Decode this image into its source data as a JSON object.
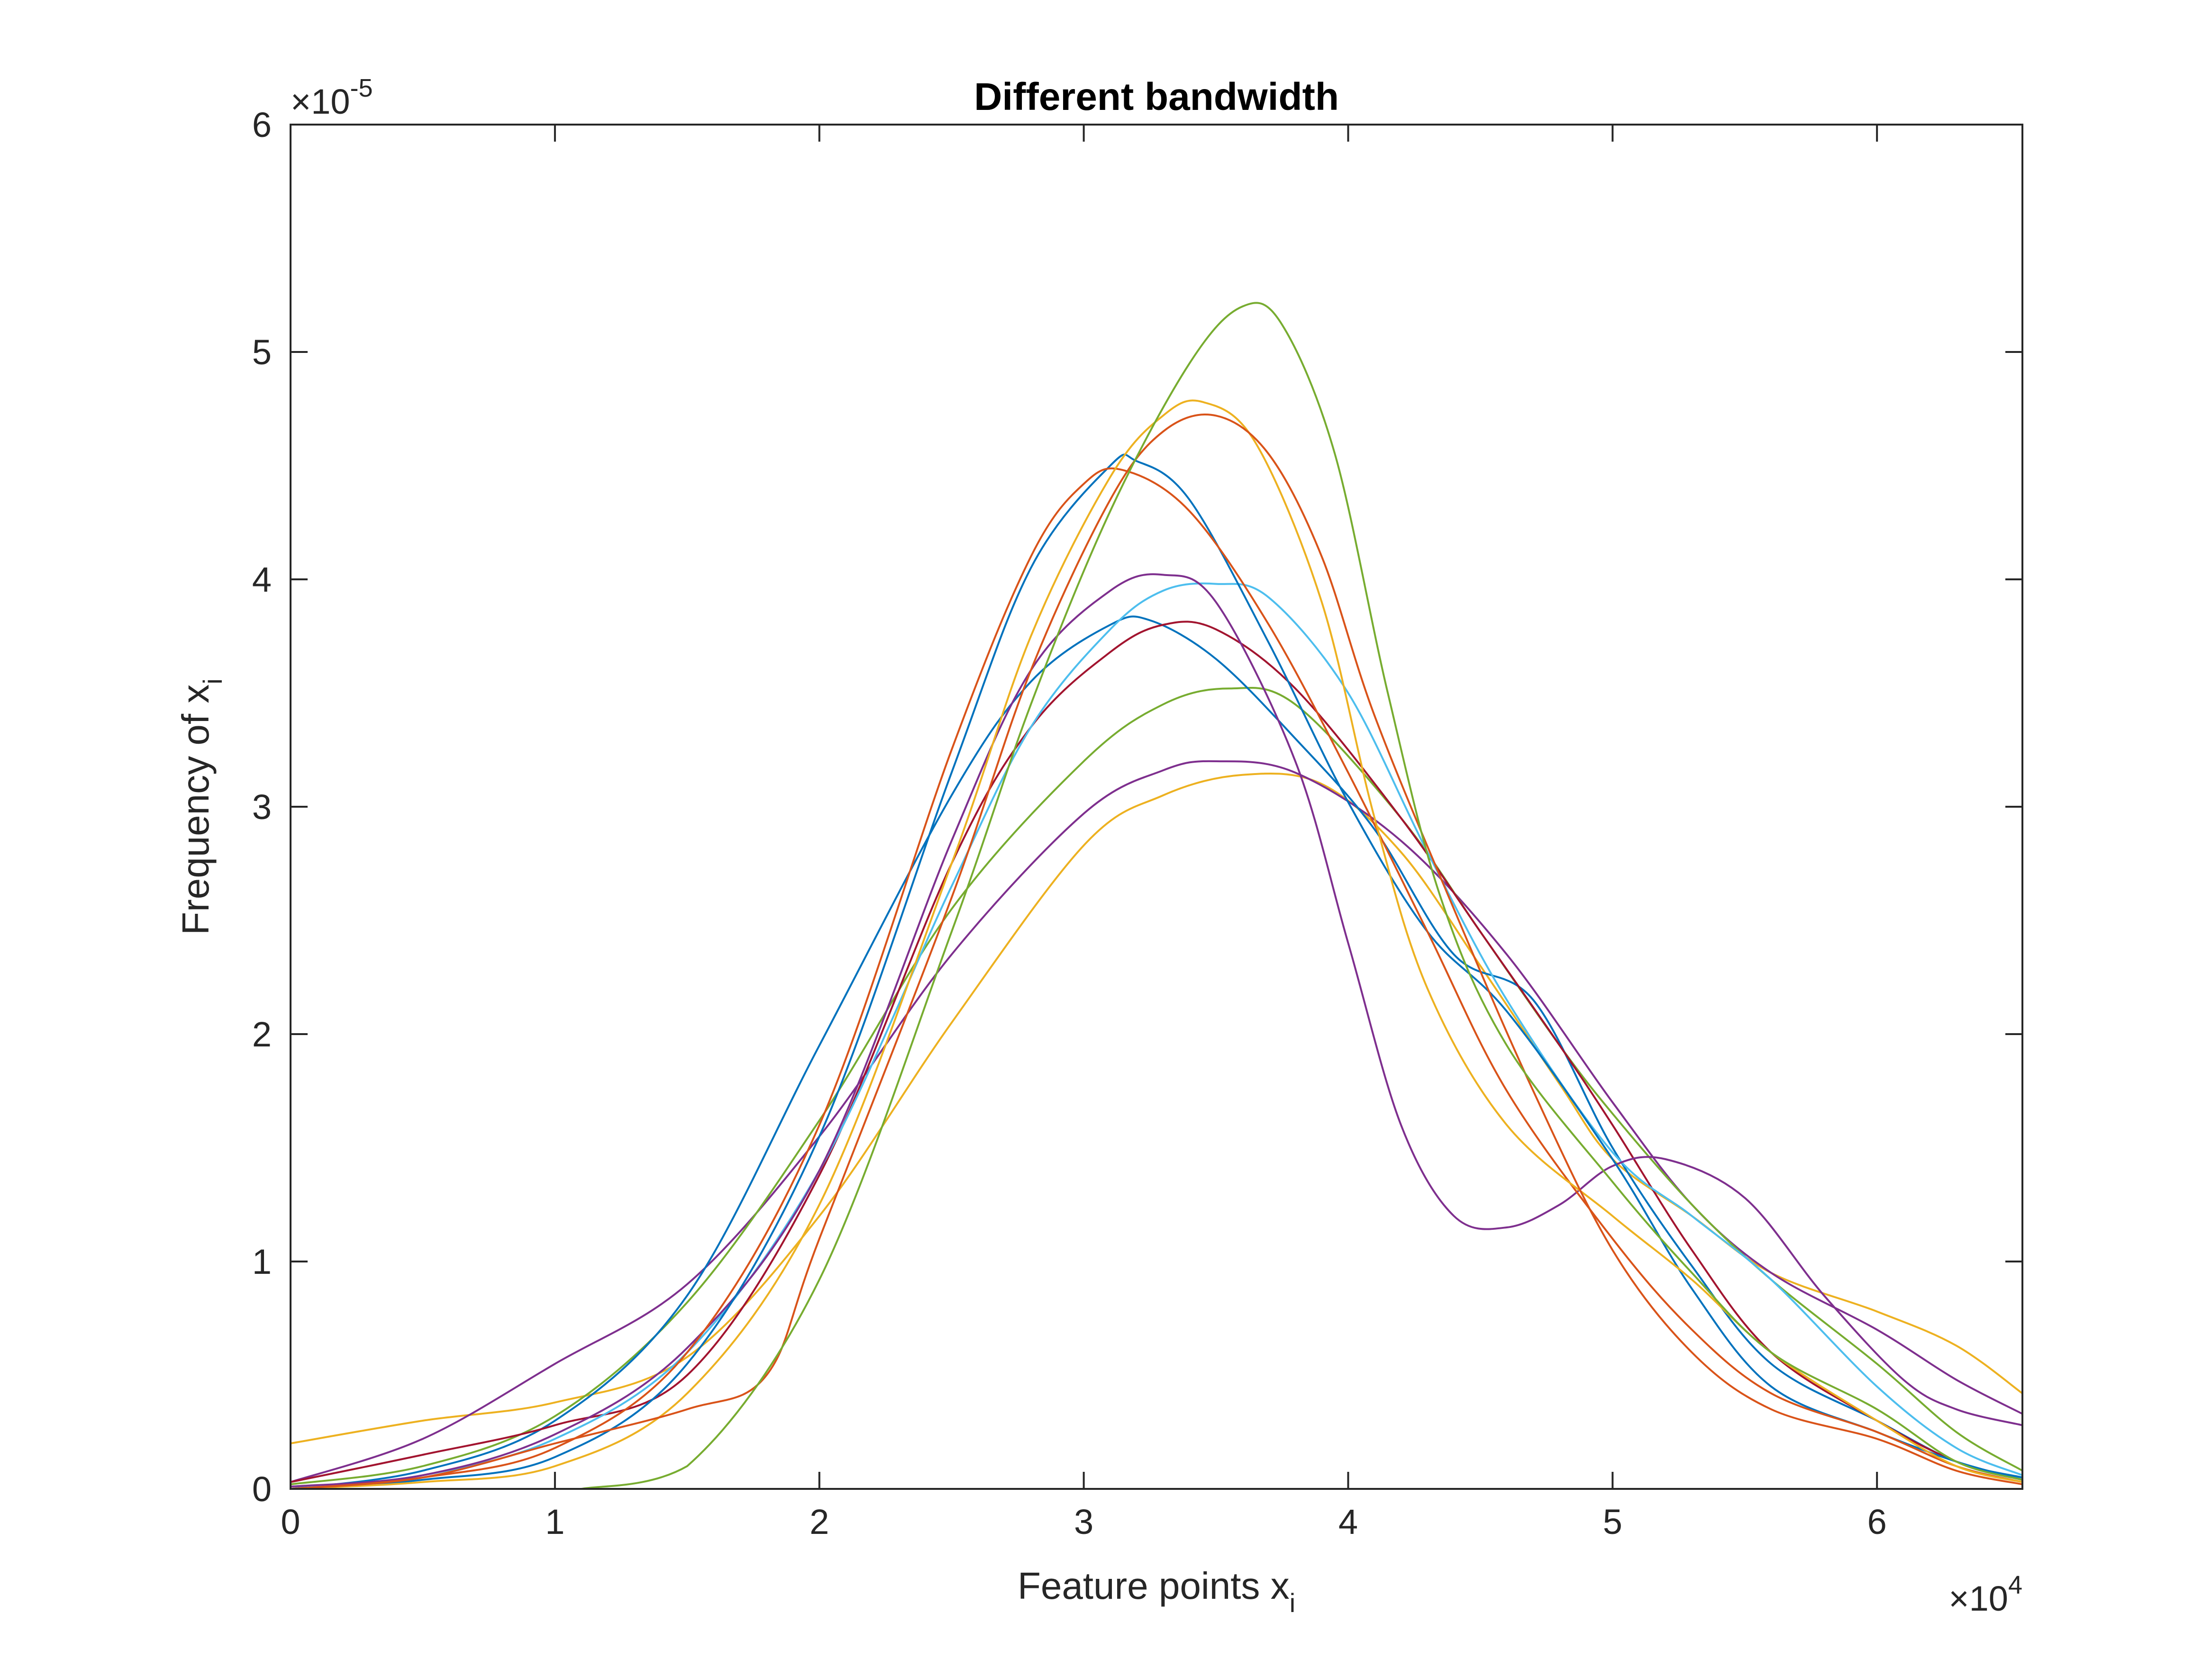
{
  "chart_data": {
    "type": "line",
    "title": "Different bandwidth",
    "xlabel": {
      "main": "Feature points x",
      "sub": "i"
    },
    "ylabel": {
      "main": "Frequency of x",
      "sub": "i"
    },
    "x_multiplier": {
      "base": "×10",
      "exp": "4"
    },
    "y_multiplier": {
      "base": "×10",
      "exp": "-5"
    },
    "xlim": [
      0,
      6.55
    ],
    "ylim": [
      0,
      6
    ],
    "x_ticks": [
      0,
      1,
      2,
      3,
      4,
      5,
      6
    ],
    "y_ticks": [
      0,
      1,
      2,
      3,
      4,
      5,
      6
    ],
    "x_tick_labels": [
      "0",
      "1",
      "2",
      "3",
      "4",
      "5",
      "6"
    ],
    "y_tick_labels": [
      "0",
      "1",
      "2",
      "3",
      "4",
      "5",
      "6"
    ],
    "grid": false,
    "legend": "none",
    "series": [
      {
        "color": "#EDB120",
        "points": [
          [
            0,
            0.2
          ],
          [
            0.5,
            0.3
          ],
          [
            1,
            0.38
          ],
          [
            1.5,
            0.58
          ],
          [
            2,
            1.2
          ],
          [
            2.5,
            2.05
          ],
          [
            3,
            2.83
          ],
          [
            3.3,
            3.05
          ],
          [
            3.6,
            3.14
          ],
          [
            3.9,
            3.1
          ],
          [
            4.2,
            2.8
          ],
          [
            4.5,
            2.3
          ],
          [
            4.8,
            1.78
          ],
          [
            5,
            1.45
          ],
          [
            5.3,
            1.2
          ],
          [
            5.6,
            0.95
          ],
          [
            6,
            0.78
          ],
          [
            6.3,
            0.63
          ],
          [
            6.55,
            0.42
          ]
        ]
      },
      {
        "color": "#7E2F8E",
        "points": [
          [
            0,
            0.03
          ],
          [
            0.5,
            0.22
          ],
          [
            1,
            0.55
          ],
          [
            1.5,
            0.9
          ],
          [
            2,
            1.55
          ],
          [
            2.5,
            2.35
          ],
          [
            3,
            2.97
          ],
          [
            3.3,
            3.16
          ],
          [
            3.5,
            3.2
          ],
          [
            3.8,
            3.15
          ],
          [
            4.2,
            2.85
          ],
          [
            4.6,
            2.35
          ],
          [
            5,
            1.7
          ],
          [
            5.3,
            1.25
          ],
          [
            5.6,
            0.95
          ],
          [
            6,
            0.7
          ],
          [
            6.3,
            0.48
          ],
          [
            6.55,
            0.33
          ]
        ]
      },
      {
        "color": "#77AC30",
        "points": [
          [
            0,
            0.02
          ],
          [
            0.5,
            0.1
          ],
          [
            1,
            0.32
          ],
          [
            1.5,
            0.82
          ],
          [
            2,
            1.62
          ],
          [
            2.5,
            2.55
          ],
          [
            3,
            3.2
          ],
          [
            3.3,
            3.45
          ],
          [
            3.55,
            3.52
          ],
          [
            3.8,
            3.45
          ],
          [
            4.2,
            2.95
          ],
          [
            4.5,
            2.45
          ],
          [
            4.8,
            1.95
          ],
          [
            5,
            1.65
          ],
          [
            5.3,
            1.25
          ],
          [
            5.6,
            0.92
          ],
          [
            6,
            0.55
          ],
          [
            6.3,
            0.25
          ],
          [
            6.55,
            0.08
          ]
        ]
      },
      {
        "color": "#0072BD",
        "points": [
          [
            0,
            0.0
          ],
          [
            0.5,
            0.08
          ],
          [
            1,
            0.3
          ],
          [
            1.5,
            0.85
          ],
          [
            2,
            1.95
          ],
          [
            2.5,
            3.05
          ],
          [
            2.8,
            3.55
          ],
          [
            3.1,
            3.8
          ],
          [
            3.25,
            3.82
          ],
          [
            3.5,
            3.65
          ],
          [
            3.8,
            3.3
          ],
          [
            4.1,
            2.9
          ],
          [
            4.4,
            2.35
          ],
          [
            4.7,
            2.15
          ],
          [
            5,
            1.5
          ],
          [
            5.3,
            0.98
          ],
          [
            5.6,
            0.55
          ],
          [
            6,
            0.3
          ],
          [
            6.3,
            0.12
          ],
          [
            6.55,
            0.05
          ]
        ]
      },
      {
        "color": "#A2142F",
        "points": [
          [
            0,
            0.03
          ],
          [
            0.5,
            0.15
          ],
          [
            1,
            0.28
          ],
          [
            1.5,
            0.5
          ],
          [
            2,
            1.38
          ],
          [
            2.5,
            2.75
          ],
          [
            2.8,
            3.35
          ],
          [
            3.1,
            3.68
          ],
          [
            3.3,
            3.8
          ],
          [
            3.5,
            3.78
          ],
          [
            3.8,
            3.52
          ],
          [
            4.2,
            2.95
          ],
          [
            4.5,
            2.45
          ],
          [
            4.8,
            1.95
          ],
          [
            5,
            1.6
          ],
          [
            5.3,
            1.05
          ],
          [
            5.6,
            0.6
          ],
          [
            6,
            0.3
          ],
          [
            6.3,
            0.12
          ],
          [
            6.55,
            0.04
          ]
        ]
      },
      {
        "color": "#4DBEEE",
        "points": [
          [
            0,
            0.0
          ],
          [
            0.5,
            0.06
          ],
          [
            1,
            0.22
          ],
          [
            1.5,
            0.6
          ],
          [
            2,
            1.4
          ],
          [
            2.5,
            2.65
          ],
          [
            2.8,
            3.35
          ],
          [
            3.1,
            3.78
          ],
          [
            3.3,
            3.95
          ],
          [
            3.5,
            3.98
          ],
          [
            3.7,
            3.92
          ],
          [
            4,
            3.5
          ],
          [
            4.3,
            2.8
          ],
          [
            4.6,
            2.15
          ],
          [
            5,
            1.48
          ],
          [
            5.3,
            1.2
          ],
          [
            5.6,
            0.92
          ],
          [
            6,
            0.45
          ],
          [
            6.3,
            0.18
          ],
          [
            6.55,
            0.06
          ]
        ]
      },
      {
        "color": "#7E2F8E",
        "points": [
          [
            0,
            0.01
          ],
          [
            0.5,
            0.06
          ],
          [
            1,
            0.24
          ],
          [
            1.5,
            0.62
          ],
          [
            2,
            1.4
          ],
          [
            2.5,
            2.85
          ],
          [
            2.8,
            3.6
          ],
          [
            3.1,
            3.95
          ],
          [
            3.3,
            4.02
          ],
          [
            3.5,
            3.9
          ],
          [
            3.8,
            3.2
          ],
          [
            4,
            2.4
          ],
          [
            4.2,
            1.6
          ],
          [
            4.4,
            1.2
          ],
          [
            4.6,
            1.15
          ],
          [
            4.8,
            1.25
          ],
          [
            5,
            1.42
          ],
          [
            5.2,
            1.45
          ],
          [
            5.5,
            1.28
          ],
          [
            5.8,
            0.85
          ],
          [
            6.1,
            0.48
          ],
          [
            6.3,
            0.35
          ],
          [
            6.55,
            0.28
          ]
        ]
      },
      {
        "color": "#0072BD",
        "points": [
          [
            0,
            0.0
          ],
          [
            0.5,
            0.04
          ],
          [
            1,
            0.14
          ],
          [
            1.5,
            0.55
          ],
          [
            2,
            1.55
          ],
          [
            2.5,
            3.15
          ],
          [
            2.8,
            4.05
          ],
          [
            3.1,
            4.5
          ],
          [
            3.2,
            4.52
          ],
          [
            3.4,
            4.35
          ],
          [
            3.7,
            3.72
          ],
          [
            4,
            3.02
          ],
          [
            4.3,
            2.45
          ],
          [
            4.6,
            2.1
          ],
          [
            5,
            1.45
          ],
          [
            5.3,
            0.88
          ],
          [
            5.6,
            0.45
          ],
          [
            6,
            0.25
          ],
          [
            6.3,
            0.12
          ],
          [
            6.55,
            0.04
          ]
        ]
      },
      {
        "color": "#D95319",
        "points": [
          [
            0,
            0.0
          ],
          [
            0.5,
            0.05
          ],
          [
            1,
            0.18
          ],
          [
            1.5,
            0.6
          ],
          [
            2,
            1.6
          ],
          [
            2.5,
            3.25
          ],
          [
            2.8,
            4.1
          ],
          [
            3,
            4.42
          ],
          [
            3.15,
            4.48
          ],
          [
            3.4,
            4.3
          ],
          [
            3.7,
            3.8
          ],
          [
            4,
            3.15
          ],
          [
            4.3,
            2.45
          ],
          [
            4.6,
            1.75
          ],
          [
            5,
            1.1
          ],
          [
            5.3,
            0.7
          ],
          [
            5.6,
            0.42
          ],
          [
            6,
            0.25
          ],
          [
            6.3,
            0.1
          ],
          [
            6.55,
            0.03
          ]
        ]
      },
      {
        "color": "#EDB120",
        "points": [
          [
            0,
            0.0
          ],
          [
            0.5,
            0.03
          ],
          [
            1,
            0.1
          ],
          [
            1.5,
            0.42
          ],
          [
            2,
            1.25
          ],
          [
            2.5,
            2.75
          ],
          [
            2.8,
            3.75
          ],
          [
            3.1,
            4.45
          ],
          [
            3.3,
            4.72
          ],
          [
            3.45,
            4.78
          ],
          [
            3.65,
            4.6
          ],
          [
            3.9,
            3.9
          ],
          [
            4.1,
            2.95
          ],
          [
            4.3,
            2.2
          ],
          [
            4.6,
            1.6
          ],
          [
            5,
            1.2
          ],
          [
            5.3,
            0.92
          ],
          [
            5.6,
            0.6
          ],
          [
            6,
            0.3
          ],
          [
            6.3,
            0.1
          ],
          [
            6.55,
            0.03
          ]
        ]
      },
      {
        "color": "#D95319",
        "points": [
          [
            0,
            0.0
          ],
          [
            0.5,
            0.05
          ],
          [
            1,
            0.2
          ],
          [
            1.5,
            0.35
          ],
          [
            1.8,
            0.5
          ],
          [
            2,
            1.1
          ],
          [
            2.5,
            2.6
          ],
          [
            2.8,
            3.6
          ],
          [
            3.1,
            4.35
          ],
          [
            3.3,
            4.65
          ],
          [
            3.5,
            4.72
          ],
          [
            3.7,
            4.55
          ],
          [
            3.9,
            4.1
          ],
          [
            4.1,
            3.4
          ],
          [
            4.4,
            2.55
          ],
          [
            4.7,
            1.75
          ],
          [
            5,
            1.05
          ],
          [
            5.3,
            0.6
          ],
          [
            5.6,
            0.35
          ],
          [
            6,
            0.22
          ],
          [
            6.3,
            0.08
          ],
          [
            6.55,
            0.02
          ]
        ]
      },
      {
        "color": "#77AC30",
        "points": [
          [
            1.1,
            0.0
          ],
          [
            1.5,
            0.1
          ],
          [
            2,
            0.92
          ],
          [
            2.5,
            2.45
          ],
          [
            2.8,
            3.45
          ],
          [
            3.1,
            4.3
          ],
          [
            3.4,
            4.95
          ],
          [
            3.6,
            5.2
          ],
          [
            3.75,
            5.12
          ],
          [
            3.95,
            4.55
          ],
          [
            4.15,
            3.5
          ],
          [
            4.35,
            2.6
          ],
          [
            4.6,
            1.95
          ],
          [
            5,
            1.35
          ],
          [
            5.3,
            0.95
          ],
          [
            5.6,
            0.6
          ],
          [
            6,
            0.35
          ],
          [
            6.3,
            0.12
          ],
          [
            6.55,
            0.04
          ]
        ]
      }
    ]
  }
}
